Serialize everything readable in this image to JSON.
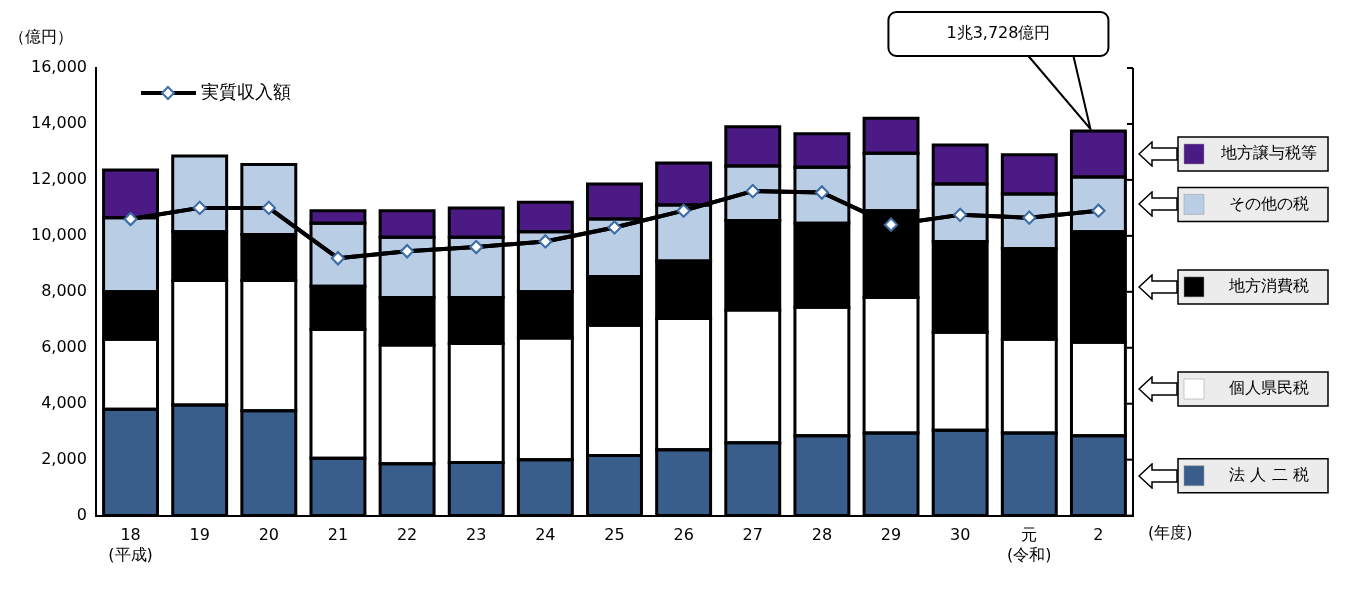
{
  "chart_data": {
    "type": "bar",
    "stacked": true,
    "ylabel": "（億円）",
    "xlabel": "(年度)",
    "categories": [
      "18\n(平成)",
      "19",
      "20",
      "21",
      "22",
      "23",
      "24",
      "25",
      "26",
      "27",
      "28",
      "29",
      "30",
      "元\n(令和)",
      "2"
    ],
    "ylim": [
      0,
      16000
    ],
    "yticks": [
      0,
      {
        "value": 2000,
        "label": "2,000"
      },
      {
        "value": 4000,
        "label": "4,000"
      },
      {
        "value": 6000,
        "label": "6,000"
      },
      {
        "value": 8000,
        "label": "8,000"
      },
      {
        "value": 10000,
        "label": "10,000"
      },
      {
        "value": 12000,
        "label": "12,000"
      },
      {
        "value": 14000,
        "label": "14,000"
      },
      {
        "value": 16000,
        "label": "16,000"
      }
    ],
    "grid": false,
    "legend": "top",
    "marker": "diamond",
    "series": [
      {
        "name": "法 人 二 税",
        "color": "#3a5e8c",
        "values": [
          3800,
          3950,
          3750,
          2050,
          1850,
          1900,
          2000,
          2150,
          2350,
          2600,
          2850,
          2950,
          3050,
          2950,
          2850
        ]
      },
      {
        "name": "個人県民税",
        "color": "#ffffff",
        "values": [
          2500,
          4450,
          4650,
          4600,
          4250,
          4250,
          4350,
          4650,
          4700,
          4750,
          4600,
          4850,
          3500,
          3350,
          3350
        ]
      },
      {
        "name": "地方消費税",
        "color": "#000000",
        "values": [
          1700,
          1750,
          1650,
          1550,
          1700,
          1650,
          1650,
          1750,
          2050,
          3200,
          3000,
          3100,
          3250,
          3250,
          3950
        ]
      },
      {
        "name": "その他の税",
        "color": "#b9cde5",
        "values": [
          2650,
          2700,
          2500,
          2250,
          2150,
          2150,
          2150,
          2050,
          2000,
          1950,
          2000,
          2050,
          2050,
          1950,
          1950
        ]
      },
      {
        "name": "地方譲与税等",
        "color": "#4b1a84",
        "values": [
          1700,
          0,
          0,
          450,
          950,
          1050,
          1050,
          1250,
          1500,
          1400,
          1200,
          1250,
          1400,
          1400,
          1650
        ]
      },
      {
        "name": "実質収入額",
        "type": "line",
        "color": "#000000",
        "values": [
          10600,
          11000,
          11000,
          9200,
          9450,
          9600,
          9800,
          10300,
          10900,
          11600,
          11550,
          10400,
          10750,
          10650,
          10900
        ]
      }
    ],
    "annotations": [
      "1兆3,728億円"
    ]
  }
}
